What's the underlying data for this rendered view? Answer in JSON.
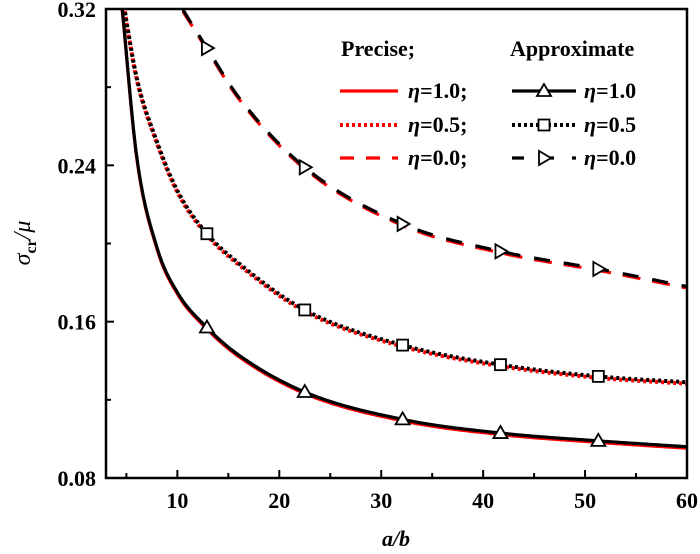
{
  "chart_data": {
    "type": "line",
    "title": "",
    "xlabel": "a/b",
    "ylabel_main": "σ",
    "ylabel_sub": "cr",
    "ylabel_tail": "/μ",
    "xlim": [
      3,
      60
    ],
    "ylim": [
      0.08,
      0.32
    ],
    "x_ticks": [
      10,
      20,
      30,
      40,
      50,
      60
    ],
    "x_tick_labels": [
      "10",
      "20",
      "30",
      "40",
      "50",
      "60"
    ],
    "x_minor_ticks": [
      5,
      15,
      25,
      35,
      45,
      55
    ],
    "y_ticks": [
      0.08,
      0.16,
      0.24,
      0.32
    ],
    "y_tick_labels": [
      "0.08",
      "0.16",
      "0.24",
      "0.32"
    ],
    "y_minor_ticks": [
      0.12,
      0.2,
      0.28
    ],
    "grid": false,
    "legend": {
      "placement": "top-right",
      "header_precise": "Precise;",
      "header_approx": "Approximate",
      "precise_labels": [
        "η=1.0;",
        "η=0.5;",
        "η=0.0;"
      ],
      "approx_labels": [
        "η=1.0",
        "η=0.5",
        "η=0.0"
      ]
    },
    "series": [
      {
        "name": "Precise η=1.0",
        "group": "precise",
        "eta": "1.0",
        "color": "#ff0000",
        "style": "solid",
        "marker": "none",
        "x": [
          4.6,
          6,
          8,
          10,
          12.9,
          16,
          22.5,
          32.1,
          41.7,
          51.3,
          60
        ],
        "y": [
          0.32,
          0.245,
          0.198,
          0.175,
          0.157,
          0.143,
          0.124,
          0.11,
          0.103,
          0.099,
          0.096
        ]
      },
      {
        "name": "Precise η=0.5",
        "group": "precise",
        "eta": "0.5",
        "color": "#ff0000",
        "style": "dotted",
        "marker": "none",
        "x": [
          4.8,
          6,
          8,
          10,
          12.9,
          16,
          22.5,
          32.1,
          41.7,
          51.3,
          60
        ],
        "y": [
          0.32,
          0.285,
          0.252,
          0.227,
          0.205,
          0.19,
          0.166,
          0.148,
          0.138,
          0.132,
          0.129
        ]
      },
      {
        "name": "Precise η=0.0",
        "group": "precise",
        "eta": "0.0",
        "color": "#ff0000",
        "style": "dashed",
        "marker": "none",
        "x": [
          10.5,
          12.9,
          16,
          22.5,
          32.1,
          41.7,
          51.3,
          60
        ],
        "y": [
          0.32,
          0.3,
          0.275,
          0.239,
          0.21,
          0.196,
          0.187,
          0.178
        ]
      },
      {
        "name": "Approximate η=1.0",
        "group": "approx",
        "eta": "1.0",
        "color": "#000000",
        "style": "solid",
        "marker": "triangle-up",
        "x": [
          4.6,
          6,
          8,
          10,
          12.9,
          16,
          22.5,
          32.1,
          41.7,
          51.3,
          60
        ],
        "y": [
          0.32,
          0.245,
          0.198,
          0.175,
          0.157,
          0.143,
          0.124,
          0.11,
          0.103,
          0.099,
          0.096
        ],
        "marker_x": [
          12.9,
          22.5,
          32.1,
          41.7,
          51.3
        ]
      },
      {
        "name": "Approximate η=0.5",
        "group": "approx",
        "eta": "0.5",
        "color": "#000000",
        "style": "dotted",
        "marker": "square",
        "x": [
          4.8,
          6,
          8,
          10,
          12.9,
          16,
          22.5,
          32.1,
          41.7,
          51.3,
          60
        ],
        "y": [
          0.32,
          0.285,
          0.252,
          0.227,
          0.205,
          0.19,
          0.166,
          0.148,
          0.138,
          0.132,
          0.129
        ],
        "marker_x": [
          12.9,
          22.5,
          32.1,
          41.7,
          51.3
        ]
      },
      {
        "name": "Approximate η=0.0",
        "group": "approx",
        "eta": "0.0",
        "color": "#000000",
        "style": "dashed",
        "marker": "triangle-right",
        "x": [
          10.5,
          12.9,
          16,
          22.5,
          32.1,
          41.7,
          51.3,
          60
        ],
        "y": [
          0.32,
          0.3,
          0.275,
          0.239,
          0.21,
          0.196,
          0.187,
          0.178
        ],
        "marker_x": [
          12.9,
          22.5,
          32.1,
          41.7,
          51.3
        ]
      }
    ]
  }
}
